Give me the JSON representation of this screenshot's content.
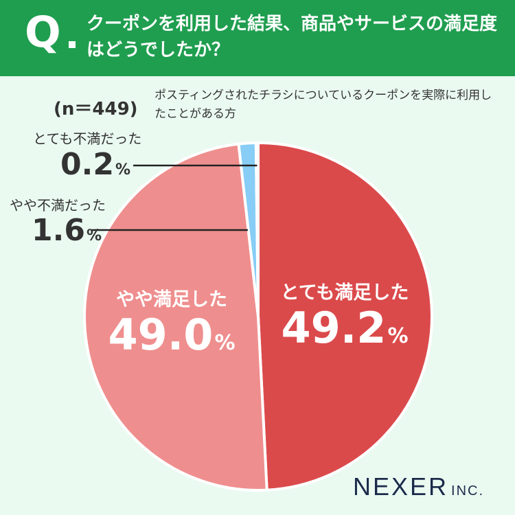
{
  "header": {
    "q_mark": "Q",
    "question": "クーポンを利用した結果、商品やサービスの満足度はどうでしたか？"
  },
  "sample": {
    "n": "(n＝449)",
    "description": "ポスティングされたチラシについているクーポンを実際に利用したことがある方"
  },
  "labels": {
    "very_satisfied": {
      "category": "とても満足した",
      "value": "49.2",
      "unit": "%"
    },
    "somewhat_satisfied": {
      "category": "やや満足した",
      "value": "49.0",
      "unit": "%"
    },
    "somewhat_dissatisfied": {
      "category": "やや不満だった",
      "value": "1.6",
      "unit": "%"
    },
    "very_dissatisfied": {
      "category": "とても不満だった",
      "value": "0.2",
      "unit": "%"
    }
  },
  "logo": {
    "main": "NEXER",
    "sub": "INC."
  },
  "chart_data": {
    "type": "pie",
    "title": "",
    "categories": [
      "とても満足した",
      "やや満足した",
      "やや不満だった",
      "とても不満だった"
    ],
    "values": [
      49.2,
      49.0,
      1.6,
      0.2
    ],
    "colors": [
      "#db4a4b",
      "#ef8e8e",
      "#87cdf5",
      "#2a8fd6"
    ],
    "start": "12 o'clock",
    "direction": "clockwise",
    "n": 449
  }
}
